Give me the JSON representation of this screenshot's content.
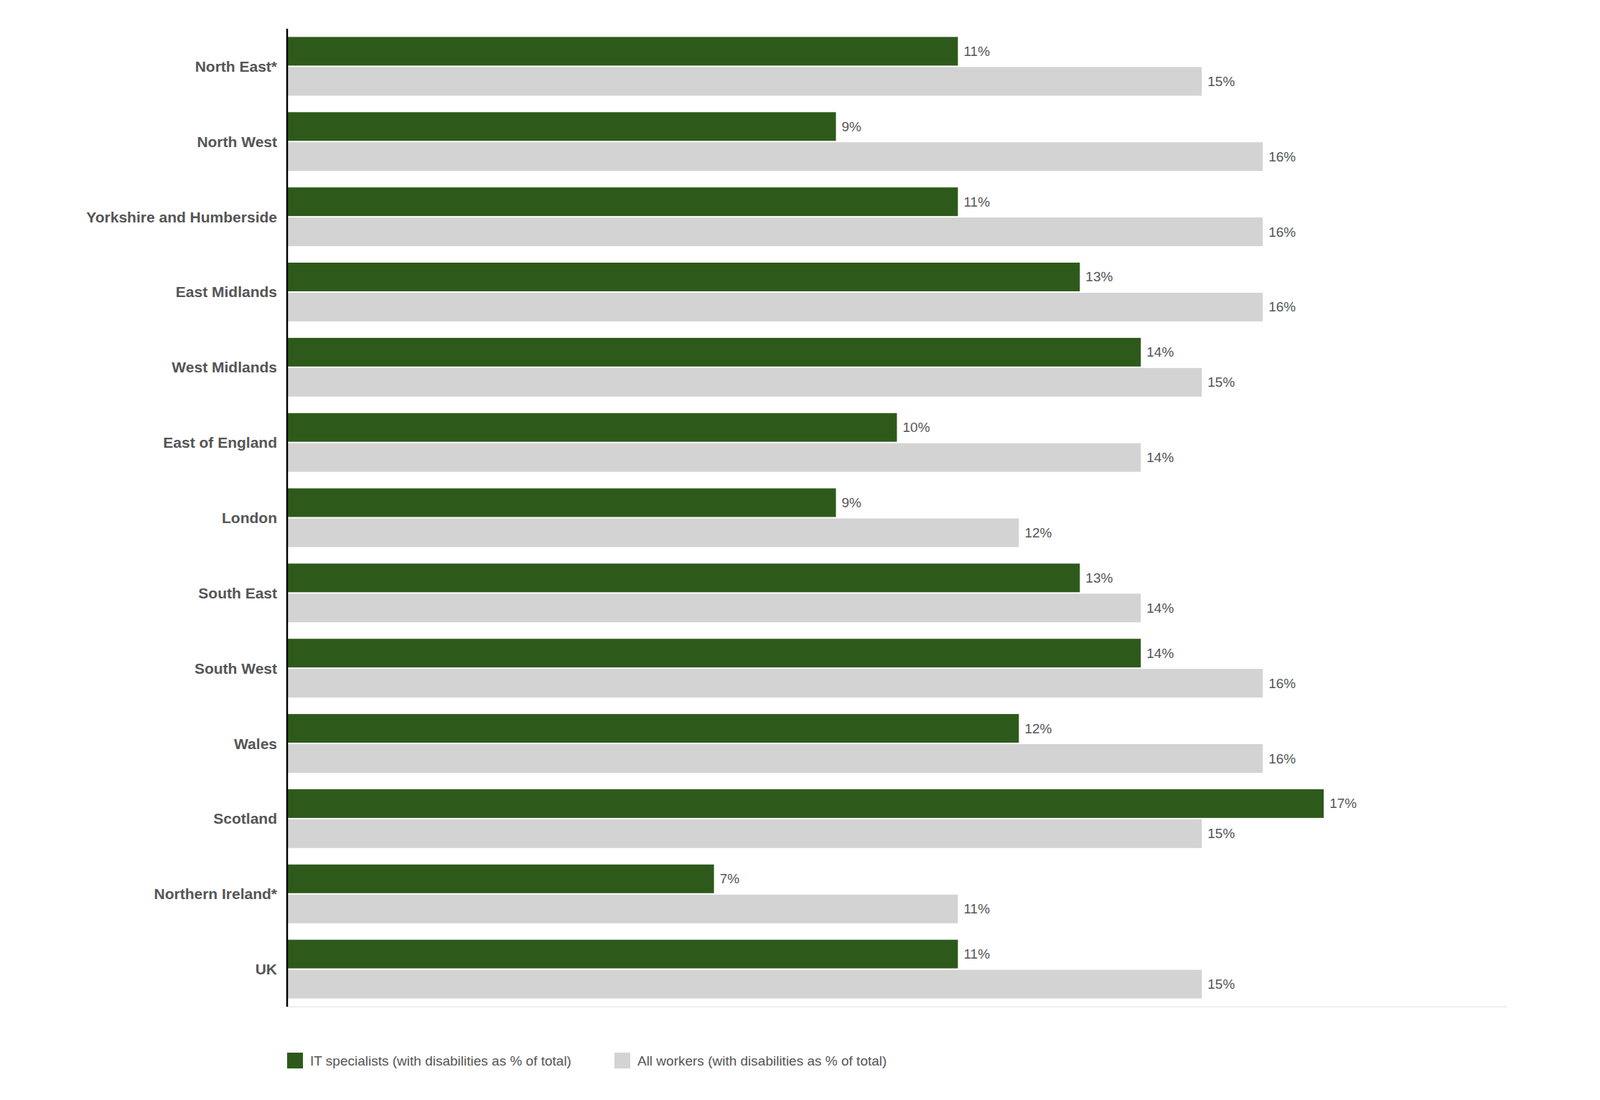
{
  "chart_data": {
    "type": "bar",
    "orientation": "horizontal",
    "categories": [
      "North East*",
      "North West",
      "Yorkshire and Humberside",
      "East Midlands",
      "West Midlands",
      "East of England",
      "London",
      "South East",
      "South West",
      "Wales",
      "Scotland",
      "Northern Ireland*",
      "UK"
    ],
    "series": [
      {
        "name": "IT specialists (with disabilities as % of total)",
        "color": "#2d5a1b",
        "values": [
          11,
          9,
          11,
          13,
          14,
          10,
          9,
          13,
          14,
          12,
          17,
          7,
          11
        ],
        "value_labels": [
          "11%",
          "9%",
          "11%",
          "13%",
          "14%",
          "10%",
          "9%",
          "13%",
          "14%",
          "12%",
          "17%",
          "7%",
          "11%"
        ]
      },
      {
        "name": "All workers (with disabilities as % of total)",
        "color": "#d3d3d3",
        "values": [
          15,
          16,
          16,
          16,
          15,
          14,
          12,
          14,
          16,
          16,
          15,
          11,
          15
        ],
        "value_labels": [
          "15%",
          "16%",
          "16%",
          "16%",
          "15%",
          "14%",
          "12%",
          "14%",
          "16%",
          "16%",
          "15%",
          "11%",
          "15%"
        ]
      }
    ],
    "xlim": [
      0,
      20
    ],
    "data_labels": true,
    "tick_labels": "y",
    "legend": "lower left"
  }
}
